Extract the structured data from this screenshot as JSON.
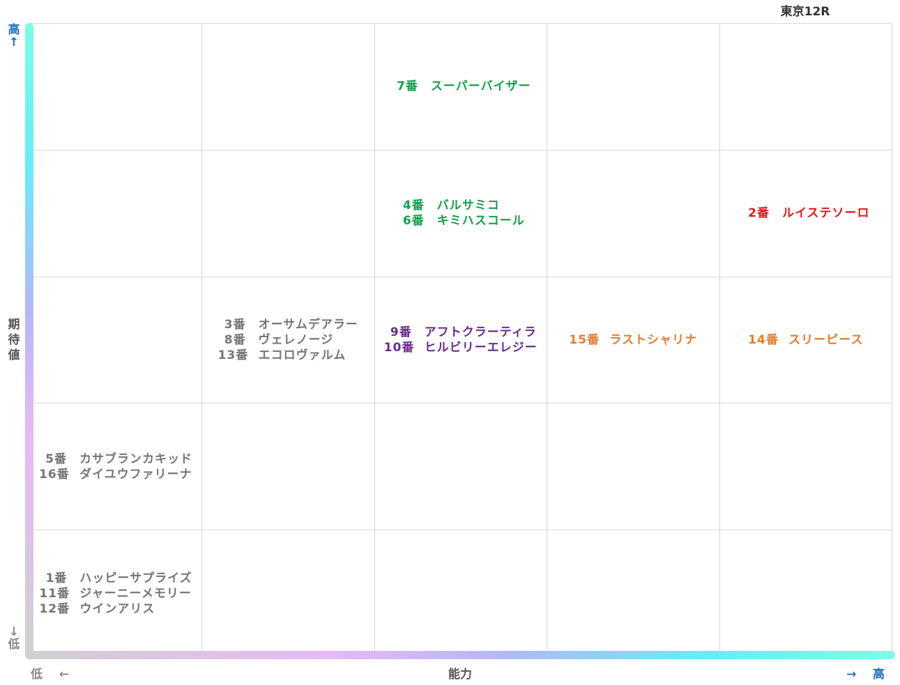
{
  "title": "東京12R",
  "axes": {
    "y": {
      "high": "高",
      "high_arrow": "↑",
      "title_chars": [
        "期",
        "待",
        "値"
      ],
      "low": "低",
      "low_arrow": "↓"
    },
    "x": {
      "low": "低",
      "low_arrow": "←",
      "title": "能力",
      "high": "高",
      "high_arrow": "→"
    }
  },
  "colors": {
    "green": "#13a04b",
    "red": "#e8141b",
    "purple": "#6a2a8e",
    "orange": "#e57b2c",
    "gray": "#757575",
    "axis_blue": "#1e6ec8"
  },
  "chart_data": {
    "type": "table",
    "title": "東京12R",
    "xlabel": "能力",
    "ylabel": "期待値",
    "x_levels": 5,
    "y_levels": 5,
    "cells": [
      {
        "col": 3,
        "row": 5,
        "entries": [
          {
            "num": "7番",
            "name": "スーパーバイザー",
            "color": "green"
          }
        ]
      },
      {
        "col": 3,
        "row": 4,
        "entries": [
          {
            "num": "4番",
            "name": "バルサミコ",
            "color": "green"
          },
          {
            "num": "6番",
            "name": "キミハスコール",
            "color": "green"
          }
        ]
      },
      {
        "col": 5,
        "row": 4,
        "entries": [
          {
            "num": "2番",
            "name": "ルイステソーロ",
            "color": "red"
          }
        ]
      },
      {
        "col": 2,
        "row": 3,
        "entries": [
          {
            "num": "3番",
            "name": "オーサムデアラー",
            "color": "gray"
          },
          {
            "num": "8番",
            "name": "ヴェレノージ",
            "color": "gray"
          },
          {
            "num": "13番",
            "name": "エコロヴァルム",
            "color": "gray"
          }
        ]
      },
      {
        "col": 3,
        "row": 3,
        "entries": [
          {
            "num": "9番",
            "name": "アフトクラーティラ",
            "color": "purple"
          },
          {
            "num": "10番",
            "name": "ヒルビリーエレジー",
            "color": "purple"
          }
        ]
      },
      {
        "col": 4,
        "row": 3,
        "entries": [
          {
            "num": "15番",
            "name": "ラストシャリナ",
            "color": "orange"
          }
        ]
      },
      {
        "col": 5,
        "row": 3,
        "entries": [
          {
            "num": "14番",
            "name": "スリーピース",
            "color": "orange"
          }
        ]
      },
      {
        "col": 1,
        "row": 2,
        "entries": [
          {
            "num": "5番",
            "name": "カサブランカキッド",
            "color": "gray"
          },
          {
            "num": "16番",
            "name": "ダイユウファリーナ",
            "color": "gray"
          }
        ]
      },
      {
        "col": 1,
        "row": 1,
        "entries": [
          {
            "num": "1番",
            "name": "ハッピーサプライズ",
            "color": "gray"
          },
          {
            "num": "11番",
            "name": "ジャーニーメモリー",
            "color": "gray"
          },
          {
            "num": "12番",
            "name": "ウインアリス",
            "color": "gray"
          }
        ]
      }
    ]
  }
}
